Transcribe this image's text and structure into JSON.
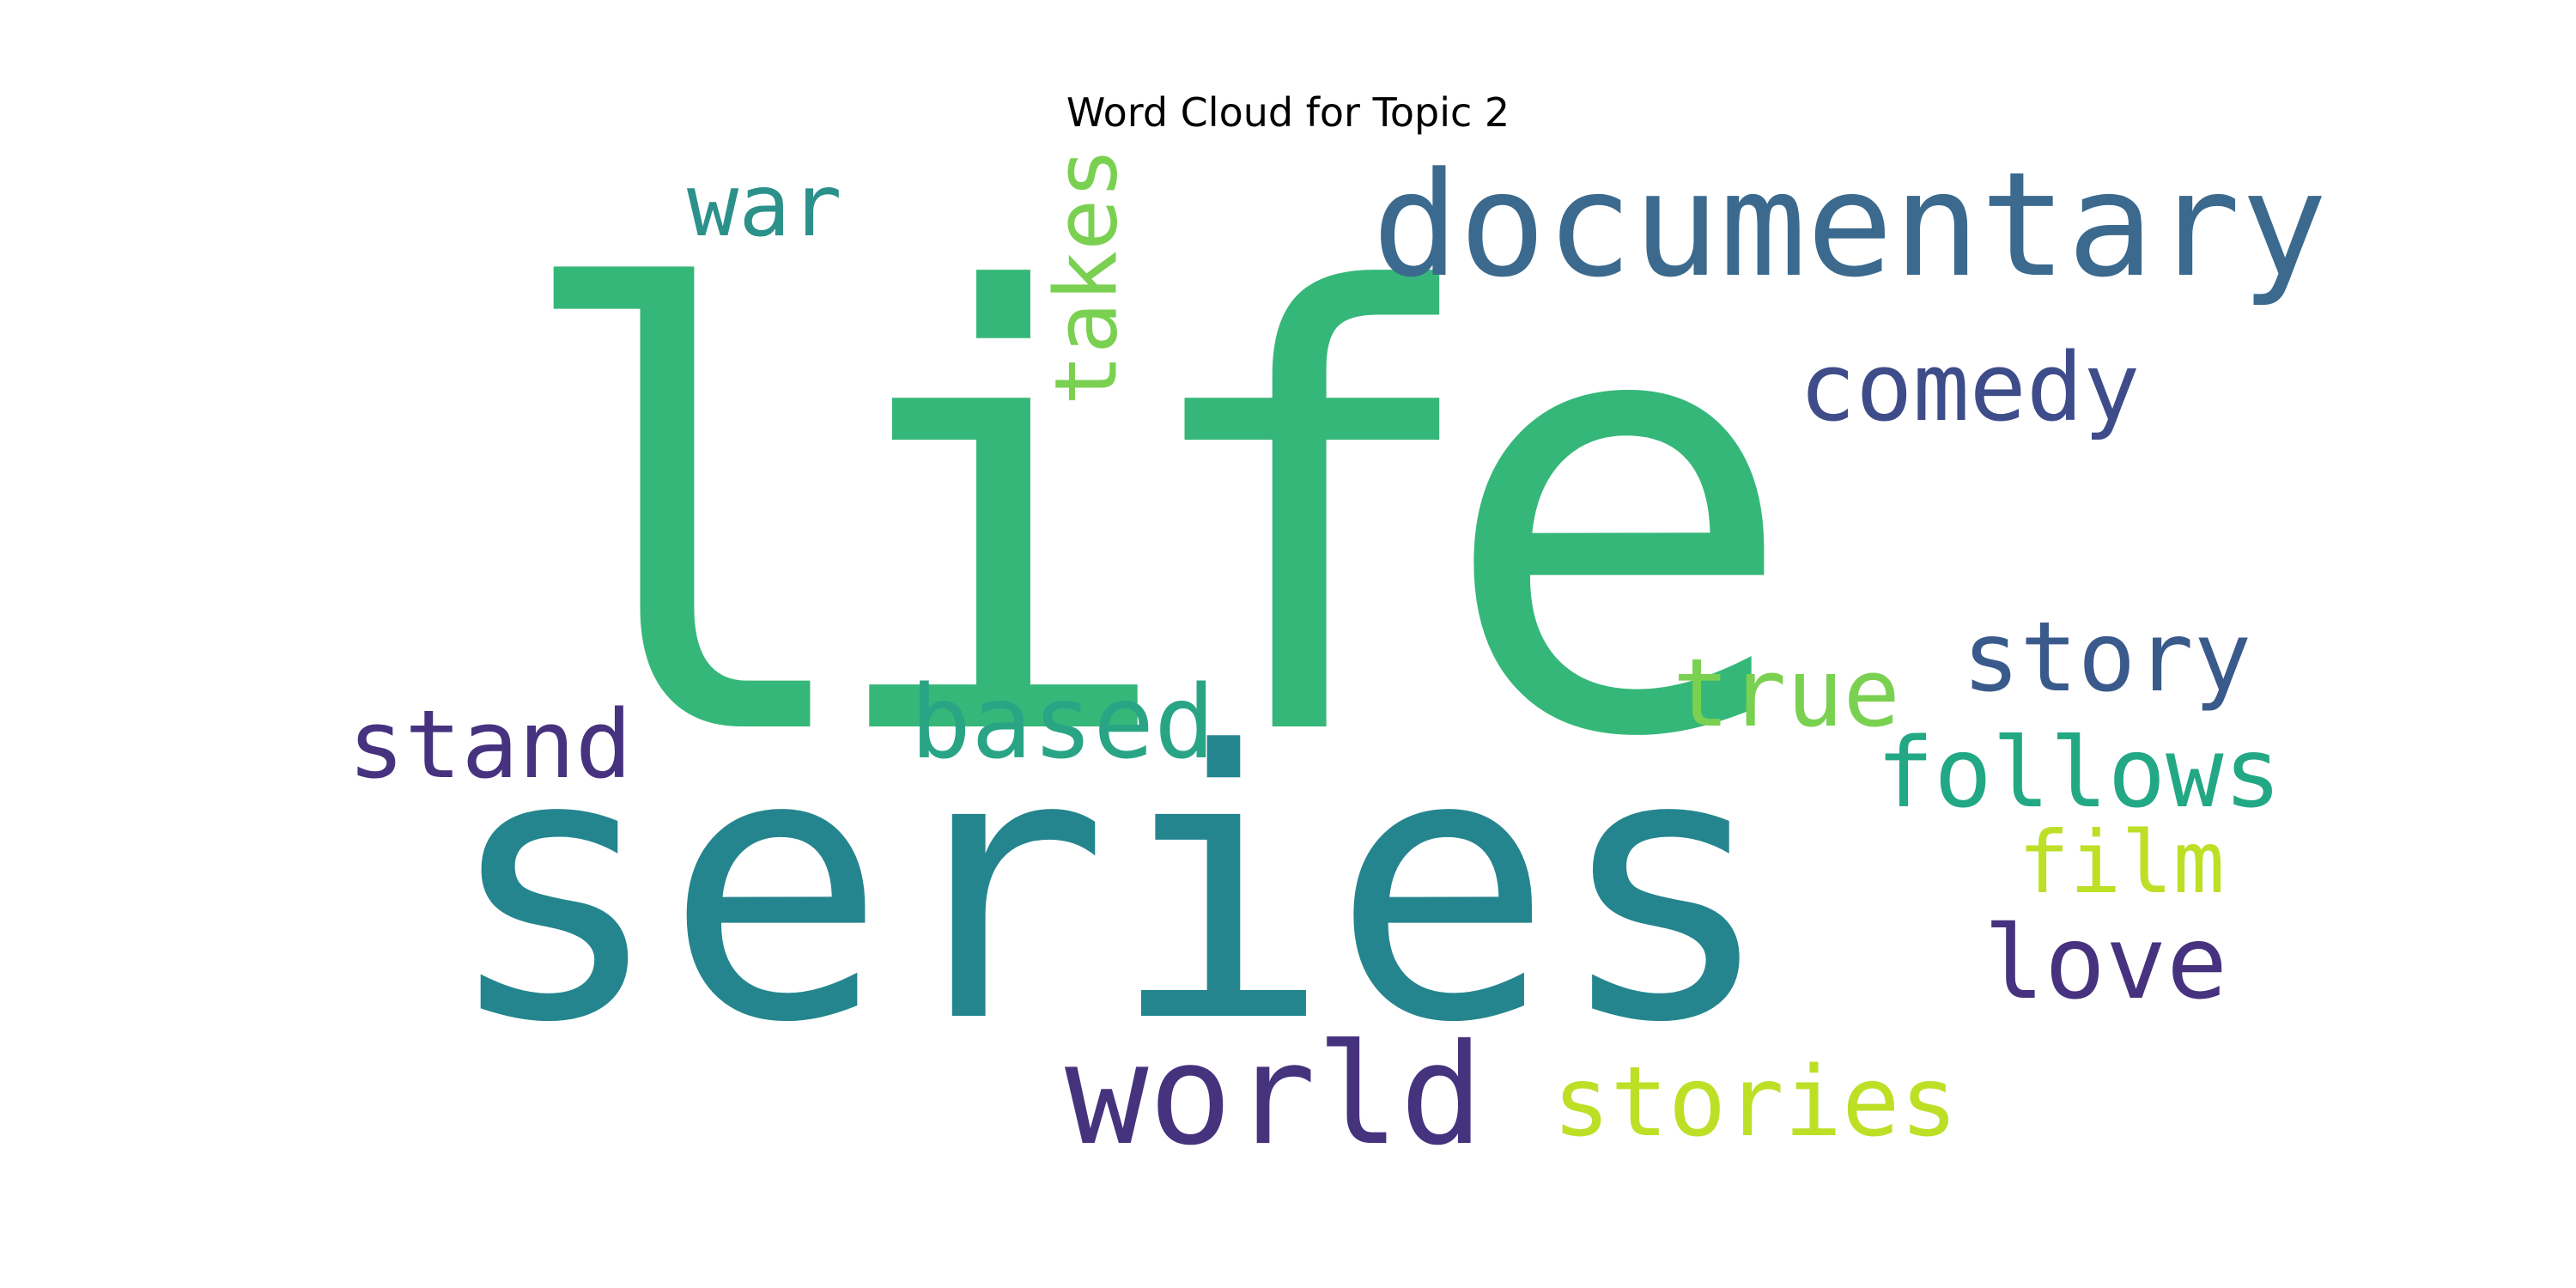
{
  "title": "Word Cloud for Topic 2",
  "words": [
    {
      "text": "life",
      "color": "#35b779"
    },
    {
      "text": "series",
      "color": "#25858e"
    },
    {
      "text": "documentary",
      "color": "#3b6a8e"
    },
    {
      "text": "comedy",
      "color": "#3e4c8a"
    },
    {
      "text": "war",
      "color": "#2b918a"
    },
    {
      "text": "takes",
      "color": "#7ad151"
    },
    {
      "text": "story",
      "color": "#3b5a8c"
    },
    {
      "text": "true",
      "color": "#7ad151"
    },
    {
      "text": "follows",
      "color": "#22a884"
    },
    {
      "text": "film",
      "color": "#bddf26"
    },
    {
      "text": "love",
      "color": "#46327e"
    },
    {
      "text": "stories",
      "color": "#bddf26"
    },
    {
      "text": "world",
      "color": "#46337e"
    },
    {
      "text": "stand",
      "color": "#46327e"
    },
    {
      "text": "based",
      "color": "#29a586"
    }
  ]
}
